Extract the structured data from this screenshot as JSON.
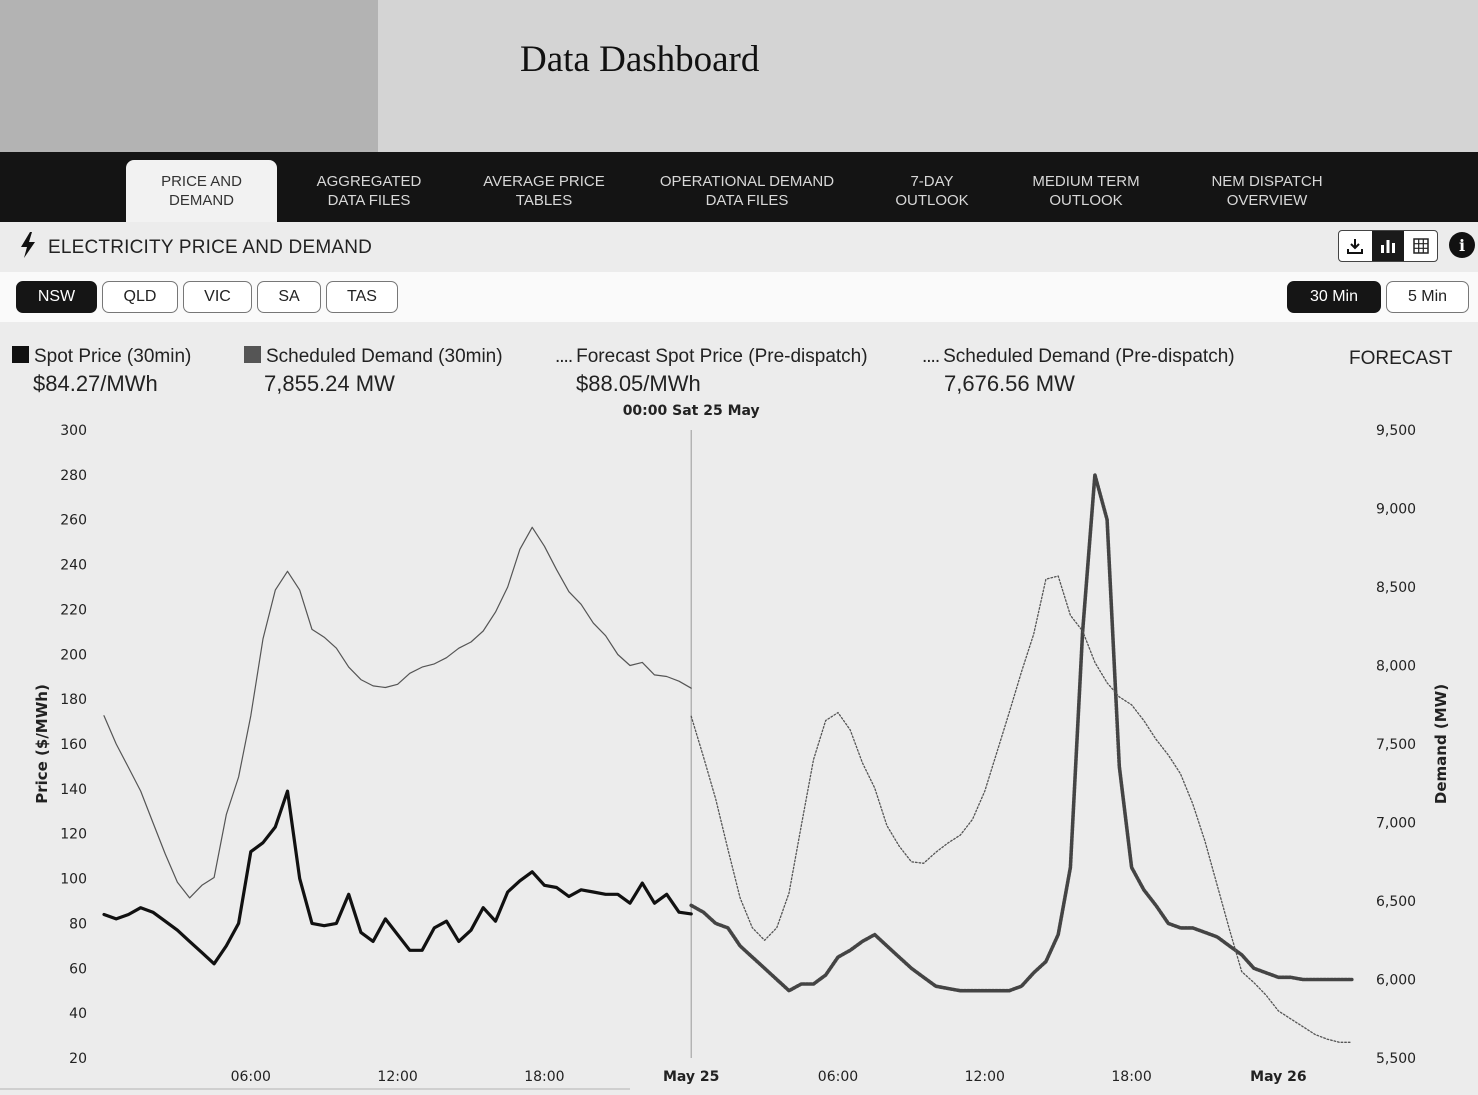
{
  "header": {
    "title": "Data Dashboard"
  },
  "nav": {
    "tabs": [
      {
        "line1": "PRICE AND",
        "line2": "DEMAND"
      },
      {
        "line1": "AGGREGATED",
        "line2": "DATA FILES"
      },
      {
        "line1": "AVERAGE PRICE",
        "line2": "TABLES"
      },
      {
        "line1": "OPERATIONAL DEMAND",
        "line2": "DATA FILES"
      },
      {
        "line1": "7-DAY",
        "line2": "OUTLOOK"
      },
      {
        "line1": "MEDIUM TERM",
        "line2": "OUTLOOK"
      },
      {
        "line1": "NEM DISPATCH",
        "line2": "OVERVIEW"
      }
    ]
  },
  "section": {
    "title": "ELECTRICITY PRICE AND DEMAND",
    "icons": [
      "download-icon",
      "chart-view-icon",
      "table-view-icon",
      "info-icon"
    ],
    "info_label": "i"
  },
  "regions": [
    "NSW",
    "QLD",
    "VIC",
    "SA",
    "TAS"
  ],
  "selected_region": "NSW",
  "intervals": [
    "30 Min",
    "5 Min"
  ],
  "selected_interval": "30 Min",
  "legend": [
    {
      "label": "Spot Price (30min)",
      "value": "$84.27/MWh"
    },
    {
      "label": "Scheduled Demand (30min)",
      "value": "7,855.24 MW"
    },
    {
      "label": "Forecast Spot Price (Pre-dispatch)",
      "value": "$88.05/MWh"
    },
    {
      "label": "Scheduled Demand (Pre-dispatch)",
      "value": "7,676.56 MW"
    }
  ],
  "forecast_label": "FORECAST",
  "legend_dots": "....",
  "colors": {
    "nav_bg": "#141414",
    "series_price": "#111111",
    "series_demand": "#555555"
  },
  "chart_data": {
    "type": "line",
    "marker_label": "00:00 Sat 25 May",
    "marker_x": 24,
    "x_tick_values": [
      6,
      12,
      18,
      24,
      30,
      36,
      42,
      48
    ],
    "x_tick_labels": [
      "06:00",
      "12:00",
      "18:00",
      "May 25",
      "06:00",
      "12:00",
      "18:00",
      "May 26"
    ],
    "xlim": [
      0,
      51.5
    ],
    "ylabel_left": "Price ($/MWh)",
    "ylim_left": [
      20,
      300
    ],
    "yticks_left": [
      300,
      280,
      260,
      240,
      220,
      200,
      180,
      160,
      140,
      120,
      100,
      80,
      60,
      40,
      20
    ],
    "ylabel_right": "Demand (MW)",
    "ylim_right": [
      5500,
      9500
    ],
    "yticks_right": [
      9500,
      9000,
      8500,
      8000,
      7500,
      7000,
      6500,
      6000,
      5500
    ],
    "yticks_right_labels": [
      "9,500",
      "9,000",
      "8,500",
      "8,000",
      "7,500",
      "7,000",
      "6,500",
      "6,000",
      "5,500"
    ],
    "series": [
      {
        "name": "Spot Price (30min)",
        "axis": "left",
        "style": "solid-thick",
        "x": [
          0,
          0.5,
          1,
          1.5,
          2,
          2.5,
          3,
          3.5,
          4,
          4.5,
          5,
          5.5,
          6,
          6.5,
          7,
          7.5,
          8,
          8.5,
          9,
          9.5,
          10,
          10.5,
          11,
          11.5,
          12,
          12.5,
          13,
          13.5,
          14,
          14.5,
          15,
          15.5,
          16,
          16.5,
          17,
          17.5,
          18,
          18.5,
          19,
          19.5,
          20,
          20.5,
          21,
          21.5,
          22,
          22.5,
          23,
          23.5,
          24
        ],
        "values": [
          84,
          82,
          84,
          87,
          85,
          81,
          77,
          72,
          67,
          62,
          70,
          80,
          112,
          116,
          123,
          139,
          100,
          80,
          79,
          80,
          93,
          76,
          72,
          82,
          75,
          68,
          68,
          78,
          81,
          72,
          77,
          87,
          81,
          94,
          99,
          103,
          97,
          96,
          92,
          95,
          94,
          93,
          93,
          89,
          98,
          89,
          93,
          85,
          84.27
        ]
      },
      {
        "name": "Scheduled Demand (30min)",
        "axis": "right",
        "style": "solid-thin",
        "x": [
          0,
          0.5,
          1,
          1.5,
          2,
          2.5,
          3,
          3.5,
          4,
          4.5,
          5,
          5.5,
          6,
          6.5,
          7,
          7.5,
          8,
          8.5,
          9,
          9.5,
          10,
          10.5,
          11,
          11.5,
          12,
          12.5,
          13,
          13.5,
          14,
          14.5,
          15,
          15.5,
          16,
          16.5,
          17,
          17.5,
          18,
          18.5,
          19,
          19.5,
          20,
          20.5,
          21,
          21.5,
          22,
          22.5,
          23,
          23.5,
          24
        ],
        "values": [
          7680,
          7500,
          7350,
          7200,
          7000,
          6800,
          6620,
          6520,
          6600,
          6650,
          7050,
          7290,
          7680,
          8170,
          8480,
          8600,
          8480,
          8230,
          8180,
          8110,
          7990,
          7910,
          7870,
          7860,
          7880,
          7950,
          7990,
          8010,
          8050,
          8110,
          8150,
          8220,
          8340,
          8500,
          8740,
          8880,
          8760,
          8610,
          8470,
          8390,
          8270,
          8190,
          8070,
          8000,
          8020,
          7940,
          7930,
          7900,
          7855.24
        ]
      },
      {
        "name": "Forecast Spot Price (Pre-dispatch)",
        "axis": "left",
        "style": "dotted-thick",
        "x": [
          24,
          24.5,
          25,
          25.5,
          26,
          26.5,
          27,
          27.5,
          28,
          28.5,
          29,
          29.5,
          30,
          30.5,
          31,
          31.5,
          32,
          32.5,
          33,
          33.5,
          34,
          34.5,
          35,
          35.5,
          36,
          36.5,
          37,
          37.5,
          38,
          38.5,
          39,
          39.5,
          40,
          40.5,
          41,
          41.5,
          42,
          42.5,
          43,
          43.5,
          44,
          44.5,
          45,
          45.5,
          46,
          46.5,
          47,
          47.5,
          48,
          48.5,
          49,
          49.5,
          50,
          50.5,
          51
        ],
        "values": [
          88.05,
          85,
          80,
          78,
          70,
          65,
          60,
          55,
          50,
          53,
          53,
          57,
          65,
          68,
          72,
          75,
          70,
          65,
          60,
          56,
          52,
          51,
          50,
          50,
          50,
          50,
          50,
          52,
          58,
          63,
          75,
          105,
          210,
          280,
          260,
          150,
          105,
          95,
          88,
          80,
          78,
          78,
          76,
          74,
          70,
          66,
          60,
          58,
          56,
          56,
          55,
          55,
          55,
          55,
          55
        ]
      },
      {
        "name": "Scheduled Demand (Pre-dispatch)",
        "axis": "right",
        "style": "dotted-thin",
        "x": [
          24,
          24.5,
          25,
          25.5,
          26,
          26.5,
          27,
          27.5,
          28,
          28.5,
          29,
          29.5,
          30,
          30.5,
          31,
          31.5,
          32,
          32.5,
          33,
          33.5,
          34,
          34.5,
          35,
          35.5,
          36,
          36.5,
          37,
          37.5,
          38,
          38.5,
          39,
          39.5,
          40,
          40.5,
          41,
          41.5,
          42,
          42.5,
          43,
          43.5,
          44,
          44.5,
          45,
          45.5,
          46,
          46.5,
          47,
          47.5,
          48,
          48.5,
          49,
          49.5,
          50,
          50.5,
          51
        ],
        "values": [
          7676.56,
          7420,
          7150,
          6830,
          6520,
          6330,
          6250,
          6330,
          6550,
          6980,
          7400,
          7650,
          7700,
          7590,
          7380,
          7220,
          6980,
          6850,
          6750,
          6740,
          6810,
          6870,
          6920,
          7020,
          7200,
          7450,
          7700,
          7960,
          8200,
          8550,
          8570,
          8320,
          8220,
          8020,
          7890,
          7800,
          7750,
          7650,
          7530,
          7430,
          7310,
          7120,
          6880,
          6600,
          6320,
          6050,
          5980,
          5900,
          5800,
          5750,
          5700,
          5650,
          5620,
          5600,
          5600
        ]
      }
    ]
  }
}
